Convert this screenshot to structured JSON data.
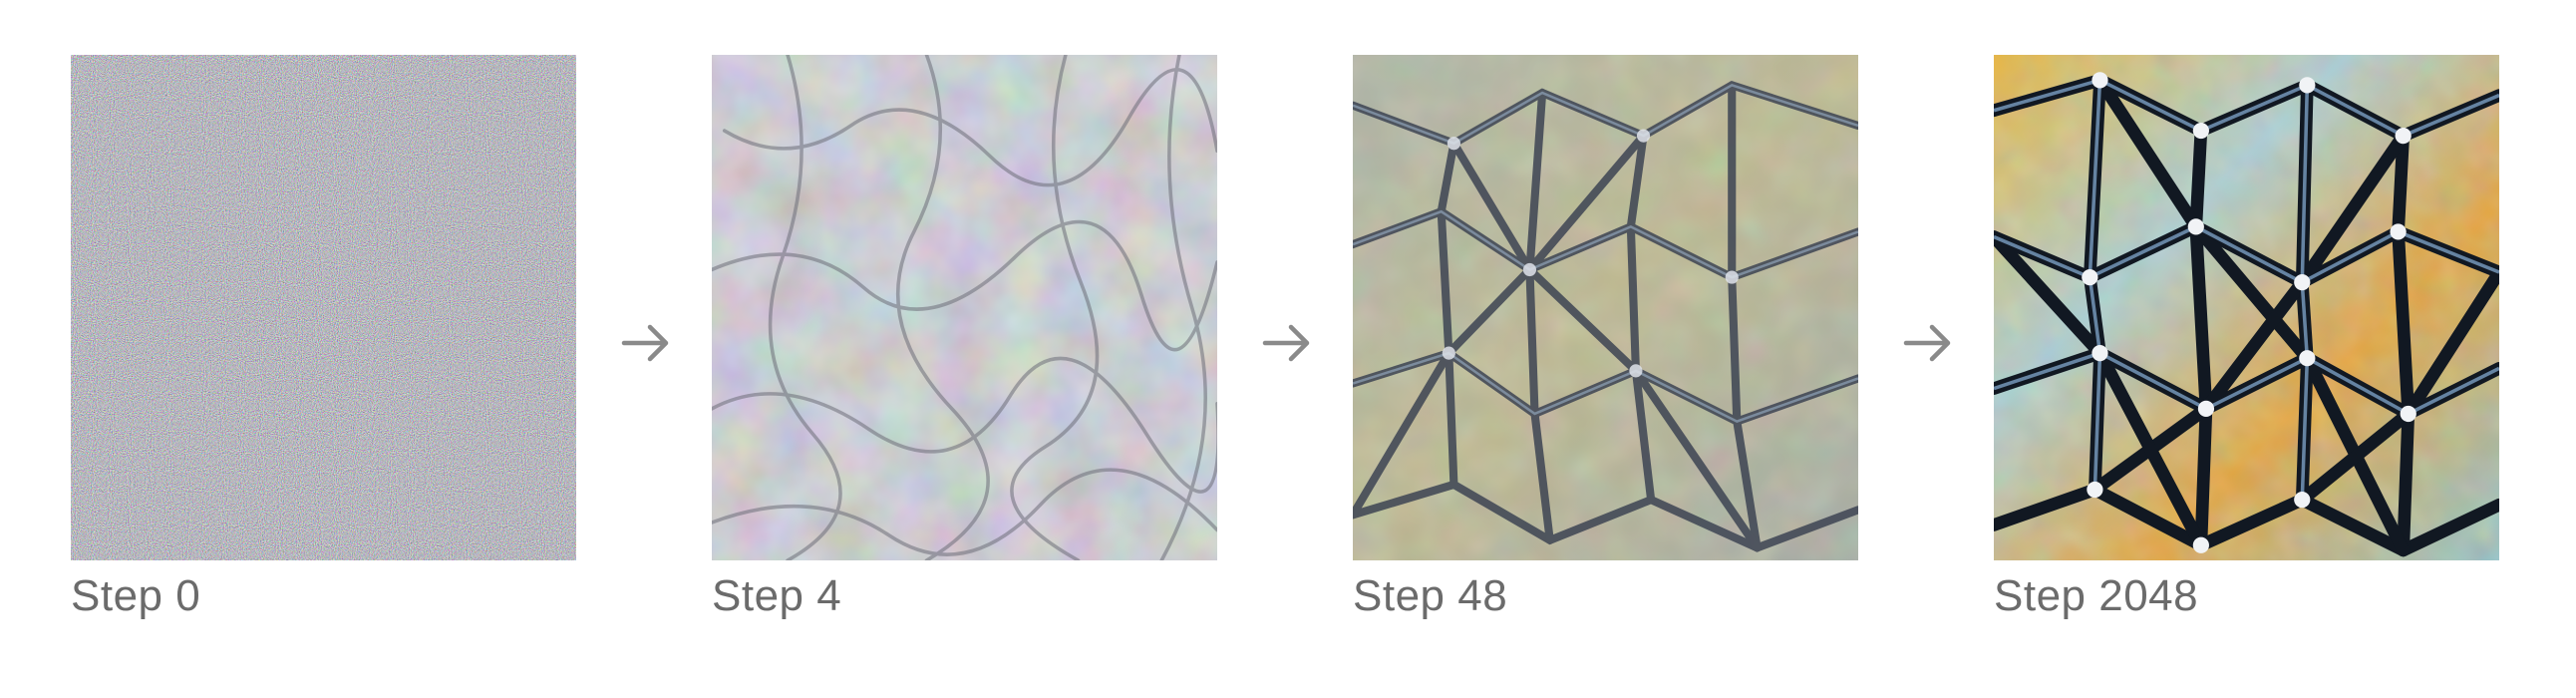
{
  "steps": [
    {
      "label": "Step 0"
    },
    {
      "label": "Step 4"
    },
    {
      "label": "Step 48"
    },
    {
      "label": "Step 2048"
    }
  ],
  "arrow_icon": "right-arrow-icon",
  "colors": {
    "caption": "#6b6b6b",
    "arrow": "#8a8a8a"
  }
}
